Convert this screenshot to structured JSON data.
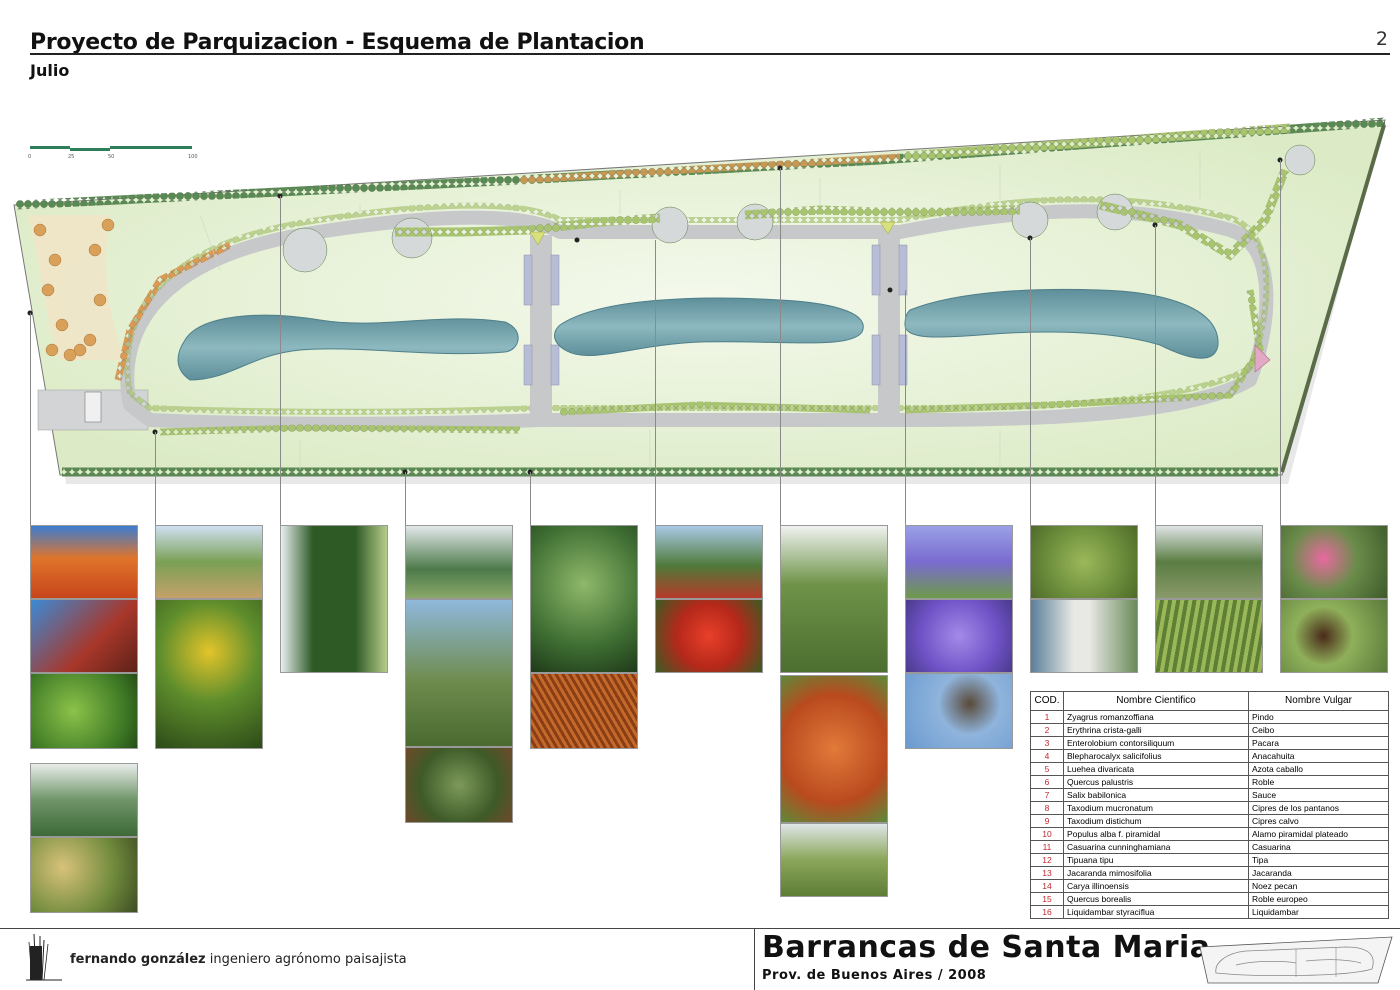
{
  "header": {
    "title": "Proyecto de Parquizacion - Esquema de Plantacion",
    "subtitle": "Julio",
    "page_number": "2"
  },
  "scale_bar": {
    "labels": [
      "0",
      "25",
      "50",
      "100"
    ]
  },
  "species_table": {
    "headers": {
      "code": "COD.",
      "scientific": "Nombre Cientifico",
      "common": "Nombre Vulgar"
    },
    "rows": [
      {
        "code": "1",
        "scientific": "Zyagrus romanzoffiana",
        "common": "Pindo"
      },
      {
        "code": "2",
        "scientific": "Erythrina crista-galli",
        "common": "Ceibo"
      },
      {
        "code": "3",
        "scientific": "Enterolobium contorsiliquum",
        "common": "Pacara"
      },
      {
        "code": "4",
        "scientific": "Blepharocalyx salicifolius",
        "common": "Anacahuita"
      },
      {
        "code": "5",
        "scientific": "Luehea divaricata",
        "common": "Azota caballo"
      },
      {
        "code": "6",
        "scientific": "Quercus palustris",
        "common": "Roble"
      },
      {
        "code": "7",
        "scientific": "Salix babilonica",
        "common": "Sauce"
      },
      {
        "code": "8",
        "scientific": "Taxodium mucronatum",
        "common": "Cipres de los pantanos"
      },
      {
        "code": "9",
        "scientific": "Taxodium distichum",
        "common": "Cipres calvo"
      },
      {
        "code": "10",
        "scientific": "Populus alba f. piramidal",
        "common": "Alamo piramidal plateado"
      },
      {
        "code": "11",
        "scientific": "Casuarina cunninghamiana",
        "common": "Casuarina"
      },
      {
        "code": "12",
        "scientific": "Tipuana tipu",
        "common": "Tipa"
      },
      {
        "code": "13",
        "scientific": "Jacaranda mimosifolia",
        "common": "Jacaranda"
      },
      {
        "code": "14",
        "scientific": "Carya illinoensis",
        "common": "Noez pecan"
      },
      {
        "code": "15",
        "scientific": "Quercus borealis",
        "common": "Roble europeo"
      },
      {
        "code": "16",
        "scientific": "Liquidambar styraciflua",
        "common": "Liquidambar"
      }
    ]
  },
  "footer": {
    "firm_name": "fernando gonzález",
    "firm_role": " ingeniero agrónomo  paisajista",
    "project_name": "Barrancas de Santa Maria",
    "project_location": "Prov. de Buenos Aires / 2008"
  },
  "colors": {
    "lawn": "#e8f2d8",
    "water": "#6e9ea8",
    "path": "#c9cbcc",
    "tree_dark": "#4f7c4a",
    "tree_light": "#8ab16a",
    "autumn": "#d9914a",
    "code_red": "#c1272d"
  }
}
